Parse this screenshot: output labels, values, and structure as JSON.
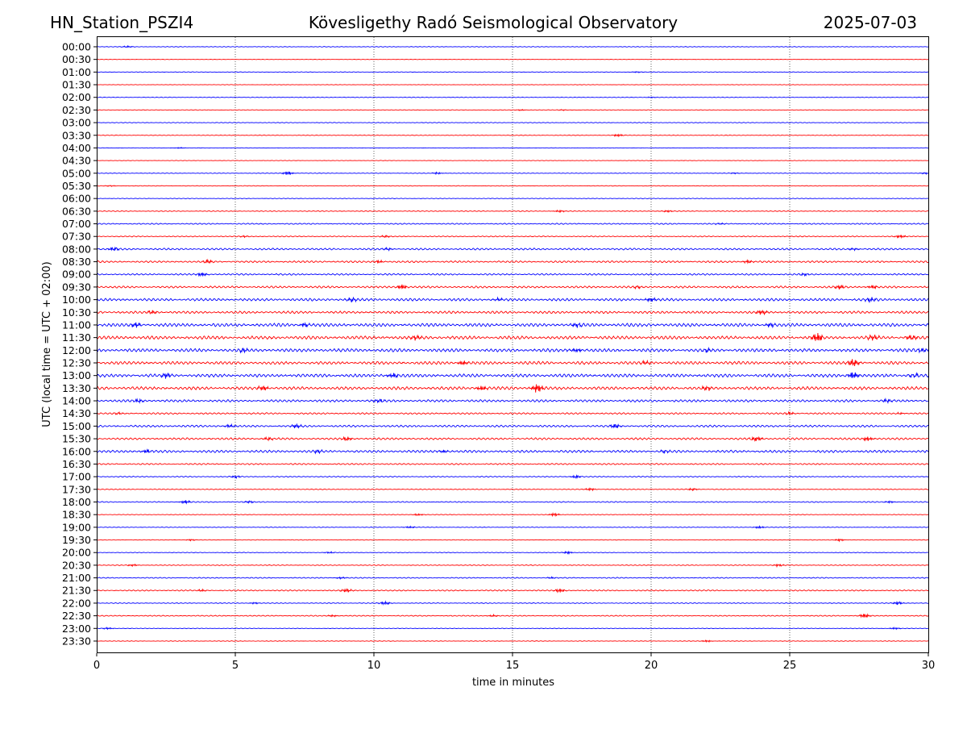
{
  "chart_data": {
    "type": "line",
    "title_left": "HN_Station_PSZI4",
    "title_center": "Kövesligethy Radó Seismological Observatory",
    "title_right": "2025-07-03",
    "xlabel": "time in minutes",
    "ylabel": "UTC (local time = UTC + 02:00)",
    "xlim": [
      0,
      30
    ],
    "x_ticks": [
      0,
      5,
      10,
      15,
      20,
      25,
      30
    ],
    "x_grid": true,
    "colors": [
      "#0000ff",
      "#ff0000"
    ],
    "rows": [
      {
        "label": "00:00",
        "color": "#0000ff",
        "noise": 0.3,
        "events": [
          [
            1.1,
            0.8
          ]
        ]
      },
      {
        "label": "00:30",
        "color": "#ff0000",
        "noise": 0.2,
        "events": []
      },
      {
        "label": "01:00",
        "color": "#0000ff",
        "noise": 0.3,
        "events": [
          [
            19.5,
            0.6
          ]
        ]
      },
      {
        "label": "01:30",
        "color": "#ff0000",
        "noise": 0.2,
        "events": []
      },
      {
        "label": "02:00",
        "color": "#0000ff",
        "noise": 0.3,
        "events": [
          [
            20.0,
            0.5
          ]
        ]
      },
      {
        "label": "02:30",
        "color": "#ff0000",
        "noise": 0.3,
        "events": [
          [
            15.3,
            0.6
          ],
          [
            16.8,
            0.5
          ]
        ]
      },
      {
        "label": "03:00",
        "color": "#0000ff",
        "noise": 0.3,
        "events": []
      },
      {
        "label": "03:30",
        "color": "#ff0000",
        "noise": 0.3,
        "events": [
          [
            18.8,
            1.3
          ]
        ]
      },
      {
        "label": "04:00",
        "color": "#0000ff",
        "noise": 0.2,
        "events": [
          [
            3.0,
            0.6
          ]
        ]
      },
      {
        "label": "04:30",
        "color": "#ff0000",
        "noise": 0.2,
        "events": []
      },
      {
        "label": "05:00",
        "color": "#0000ff",
        "noise": 0.3,
        "events": [
          [
            6.9,
            2.0
          ],
          [
            12.3,
            1.0
          ],
          [
            23.0,
            0.7
          ],
          [
            29.9,
            0.8
          ]
        ]
      },
      {
        "label": "05:30",
        "color": "#ff0000",
        "noise": 0.3,
        "events": [
          [
            0.5,
            0.6
          ]
        ]
      },
      {
        "label": "06:00",
        "color": "#0000ff",
        "noise": 0.3,
        "events": []
      },
      {
        "label": "06:30",
        "color": "#ff0000",
        "noise": 0.4,
        "events": [
          [
            16.7,
            1.0
          ],
          [
            20.6,
            1.0
          ]
        ]
      },
      {
        "label": "07:00",
        "color": "#0000ff",
        "noise": 0.6,
        "events": [
          [
            22.5,
            0.8
          ]
        ]
      },
      {
        "label": "07:30",
        "color": "#ff0000",
        "noise": 0.5,
        "events": [
          [
            5.3,
            0.8
          ],
          [
            10.4,
            1.0
          ],
          [
            29.0,
            1.6
          ]
        ]
      },
      {
        "label": "08:00",
        "color": "#0000ff",
        "noise": 0.9,
        "events": [
          [
            0.6,
            1.8
          ],
          [
            10.5,
            1.2
          ],
          [
            27.3,
            1.2
          ]
        ]
      },
      {
        "label": "08:30",
        "color": "#ff0000",
        "noise": 0.9,
        "events": [
          [
            4.0,
            1.8
          ],
          [
            10.2,
            1.2
          ],
          [
            23.5,
            1.5
          ]
        ]
      },
      {
        "label": "09:00",
        "color": "#0000ff",
        "noise": 0.8,
        "events": [
          [
            3.8,
            2.2
          ],
          [
            25.5,
            1.0
          ]
        ]
      },
      {
        "label": "09:30",
        "color": "#ff0000",
        "noise": 1.0,
        "events": [
          [
            11.0,
            2.2
          ],
          [
            19.5,
            1.2
          ],
          [
            26.8,
            2.0
          ],
          [
            28.0,
            1.8
          ]
        ]
      },
      {
        "label": "10:00",
        "color": "#0000ff",
        "noise": 1.3,
        "events": [
          [
            9.2,
            2.0
          ],
          [
            14.5,
            1.6
          ],
          [
            20.0,
            2.0
          ],
          [
            27.9,
            2.2
          ]
        ]
      },
      {
        "label": "10:30",
        "color": "#ff0000",
        "noise": 1.2,
        "events": [
          [
            2.0,
            1.6
          ],
          [
            24.0,
            2.6
          ]
        ]
      },
      {
        "label": "11:00",
        "color": "#0000ff",
        "noise": 1.6,
        "events": [
          [
            1.4,
            2.6
          ],
          [
            7.5,
            2.0
          ],
          [
            17.3,
            2.2
          ],
          [
            24.3,
            2.0
          ]
        ]
      },
      {
        "label": "11:30",
        "color": "#ff0000",
        "noise": 1.6,
        "events": [
          [
            11.5,
            2.4
          ],
          [
            26.0,
            4.8
          ],
          [
            28.0,
            2.4
          ],
          [
            29.4,
            2.6
          ]
        ]
      },
      {
        "label": "12:00",
        "color": "#0000ff",
        "noise": 1.6,
        "events": [
          [
            5.3,
            2.0
          ],
          [
            17.3,
            2.0
          ],
          [
            22.0,
            1.8
          ],
          [
            29.8,
            2.2
          ]
        ]
      },
      {
        "label": "12:30",
        "color": "#ff0000",
        "noise": 1.5,
        "events": [
          [
            13.2,
            2.2
          ],
          [
            19.8,
            1.6
          ],
          [
            27.3,
            3.8
          ]
        ]
      },
      {
        "label": "13:00",
        "color": "#0000ff",
        "noise": 1.6,
        "events": [
          [
            2.5,
            2.2
          ],
          [
            10.7,
            2.2
          ],
          [
            27.3,
            3.8
          ],
          [
            29.5,
            2.0
          ]
        ]
      },
      {
        "label": "13:30",
        "color": "#ff0000",
        "noise": 1.5,
        "events": [
          [
            6.0,
            2.6
          ],
          [
            13.9,
            2.4
          ],
          [
            15.9,
            5.0
          ],
          [
            22.0,
            2.0
          ]
        ]
      },
      {
        "label": "14:00",
        "color": "#0000ff",
        "noise": 1.2,
        "events": [
          [
            1.5,
            1.6
          ],
          [
            10.2,
            1.6
          ],
          [
            28.5,
            1.4
          ]
        ]
      },
      {
        "label": "14:30",
        "color": "#ff0000",
        "noise": 0.8,
        "events": [
          [
            0.8,
            1.0
          ],
          [
            25.0,
            1.2
          ],
          [
            29.0,
            1.0
          ]
        ]
      },
      {
        "label": "15:00",
        "color": "#0000ff",
        "noise": 1.0,
        "events": [
          [
            4.8,
            1.5
          ],
          [
            7.2,
            2.0
          ],
          [
            18.7,
            2.4
          ]
        ]
      },
      {
        "label": "15:30",
        "color": "#ff0000",
        "noise": 1.0,
        "events": [
          [
            6.2,
            1.4
          ],
          [
            9.0,
            2.2
          ],
          [
            23.8,
            2.4
          ],
          [
            27.8,
            2.2
          ]
        ]
      },
      {
        "label": "16:00",
        "color": "#0000ff",
        "noise": 1.2,
        "events": [
          [
            1.8,
            1.8
          ],
          [
            8.0,
            1.5
          ],
          [
            12.5,
            1.5
          ],
          [
            20.5,
            1.5
          ]
        ]
      },
      {
        "label": "16:30",
        "color": "#ff0000",
        "noise": 0.7,
        "events": []
      },
      {
        "label": "17:00",
        "color": "#0000ff",
        "noise": 0.5,
        "events": [
          [
            5.0,
            1.2
          ],
          [
            17.3,
            1.6
          ]
        ]
      },
      {
        "label": "17:30",
        "color": "#ff0000",
        "noise": 0.4,
        "events": [
          [
            17.8,
            1.4
          ],
          [
            21.5,
            1.2
          ]
        ]
      },
      {
        "label": "18:00",
        "color": "#0000ff",
        "noise": 0.5,
        "events": [
          [
            3.2,
            1.8
          ],
          [
            5.5,
            1.2
          ],
          [
            28.6,
            1.0
          ]
        ]
      },
      {
        "label": "18:30",
        "color": "#ff0000",
        "noise": 0.3,
        "events": [
          [
            11.6,
            1.0
          ],
          [
            16.5,
            1.6
          ]
        ]
      },
      {
        "label": "19:00",
        "color": "#0000ff",
        "noise": 0.3,
        "events": [
          [
            11.3,
            1.0
          ],
          [
            23.9,
            1.2
          ]
        ]
      },
      {
        "label": "19:30",
        "color": "#ff0000",
        "noise": 0.3,
        "events": [
          [
            3.4,
            0.8
          ],
          [
            26.8,
            1.2
          ]
        ]
      },
      {
        "label": "20:00",
        "color": "#0000ff",
        "noise": 0.3,
        "events": [
          [
            8.4,
            0.8
          ],
          [
            17.0,
            1.2
          ]
        ]
      },
      {
        "label": "20:30",
        "color": "#ff0000",
        "noise": 0.4,
        "events": [
          [
            1.3,
            1.0
          ],
          [
            24.6,
            1.3
          ]
        ]
      },
      {
        "label": "21:00",
        "color": "#0000ff",
        "noise": 0.5,
        "events": [
          [
            8.8,
            1.0
          ],
          [
            16.4,
            0.8
          ]
        ]
      },
      {
        "label": "21:30",
        "color": "#ff0000",
        "noise": 0.6,
        "events": [
          [
            3.8,
            1.0
          ],
          [
            9.0,
            1.8
          ],
          [
            16.7,
            2.0
          ]
        ]
      },
      {
        "label": "22:00",
        "color": "#0000ff",
        "noise": 0.4,
        "events": [
          [
            5.7,
            0.8
          ],
          [
            10.4,
            1.6
          ],
          [
            28.9,
            1.5
          ]
        ]
      },
      {
        "label": "22:30",
        "color": "#ff0000",
        "noise": 0.5,
        "events": [
          [
            8.5,
            1.0
          ],
          [
            14.3,
            1.0
          ],
          [
            27.7,
            2.4
          ]
        ]
      },
      {
        "label": "23:00",
        "color": "#0000ff",
        "noise": 0.3,
        "events": [
          [
            0.4,
            1.0
          ],
          [
            28.8,
            1.0
          ]
        ]
      },
      {
        "label": "23:30",
        "color": "#ff0000",
        "noise": 0.3,
        "events": [
          [
            22.0,
            1.0
          ]
        ]
      }
    ]
  }
}
